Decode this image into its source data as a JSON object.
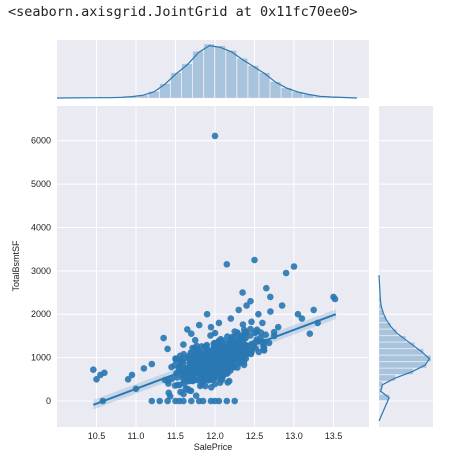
{
  "output_repr": "<seaborn.axisgrid.JointGrid at 0x11fc70ee0>",
  "colors": {
    "panel_bg": "#eaeaf2",
    "grid": "#ffffff",
    "points": "#2a78b3",
    "hist": "#a8c3dc"
  },
  "chart_data": {
    "type": "scatter",
    "xlabel": "SalePrice",
    "ylabel": "TotalBsmtSF",
    "xlim": [
      10.0,
      13.95
    ],
    "ylim": [
      -600,
      6800
    ],
    "xticks": [
      "10.5",
      "11.0",
      "11.5",
      "12.0",
      "12.5",
      "13.0",
      "13.5"
    ],
    "yticks": [
      "0",
      "1000",
      "2000",
      "3000",
      "4000",
      "5000",
      "6000"
    ],
    "regression": {
      "intercept": -7200,
      "slope": 680,
      "x_range": [
        10.46,
        13.53
      ]
    },
    "points": [
      [
        10.46,
        720
      ],
      [
        10.5,
        500
      ],
      [
        10.55,
        600
      ],
      [
        10.6,
        650
      ],
      [
        10.58,
        0
      ],
      [
        10.9,
        500
      ],
      [
        11.0,
        280
      ],
      [
        11.1,
        750
      ],
      [
        10.95,
        600
      ],
      [
        11.2,
        850
      ],
      [
        11.35,
        1450
      ],
      [
        11.4,
        1200
      ],
      [
        11.45,
        780
      ],
      [
        11.5,
        980
      ],
      [
        11.6,
        1300
      ],
      [
        11.65,
        1650
      ],
      [
        11.7,
        1550
      ],
      [
        11.75,
        1400
      ],
      [
        11.8,
        1750
      ],
      [
        11.9,
        2000
      ],
      [
        11.95,
        1700
      ],
      [
        12.0,
        6110
      ],
      [
        12.05,
        1800
      ],
      [
        12.1,
        1300
      ],
      [
        12.15,
        3150
      ],
      [
        12.2,
        1900
      ],
      [
        12.25,
        1600
      ],
      [
        12.3,
        2100
      ],
      [
        12.35,
        2500
      ],
      [
        12.4,
        2200
      ],
      [
        12.45,
        2300
      ],
      [
        12.5,
        3250
      ],
      [
        12.55,
        2000
      ],
      [
        12.6,
        1800
      ],
      [
        12.65,
        2600
      ],
      [
        12.7,
        2400
      ],
      [
        12.75,
        1500
      ],
      [
        12.8,
        1700
      ],
      [
        12.85,
        2200
      ],
      [
        12.9,
        2950
      ],
      [
        13.0,
        3100
      ],
      [
        13.05,
        2000
      ],
      [
        13.1,
        1900
      ],
      [
        13.2,
        1550
      ],
      [
        13.25,
        2100
      ],
      [
        13.3,
        1800
      ],
      [
        13.5,
        2400
      ],
      [
        13.52,
        2350
      ],
      [
        11.2,
        0
      ],
      [
        11.3,
        0
      ],
      [
        11.4,
        0
      ],
      [
        11.5,
        0
      ],
      [
        11.55,
        0
      ],
      [
        11.6,
        0
      ],
      [
        11.7,
        0
      ],
      [
        11.8,
        0
      ],
      [
        11.85,
        0
      ],
      [
        11.95,
        0
      ],
      [
        12.05,
        0
      ],
      [
        12.15,
        0
      ],
      [
        12.25,
        0
      ],
      [
        12.0,
        0
      ]
    ],
    "marginal_x": {
      "bins": [
        10.46,
        10.6,
        10.74,
        10.88,
        11.02,
        11.16,
        11.3,
        11.44,
        11.58,
        11.72,
        11.86,
        12.0,
        12.14,
        12.28,
        12.42,
        12.56,
        12.7,
        12.84,
        12.98,
        13.12,
        13.26,
        13.4,
        13.54
      ],
      "counts": [
        1,
        1,
        2,
        4,
        8,
        18,
        40,
        70,
        95,
        130,
        150,
        145,
        132,
        110,
        90,
        70,
        45,
        28,
        17,
        10,
        5,
        3
      ]
    },
    "marginal_y": {
      "bins": [
        0,
        150,
        300,
        450,
        600,
        750,
        900,
        1050,
        1200,
        1350,
        1500,
        1650,
        1800,
        1950,
        2100,
        2250,
        2400
      ],
      "counts": [
        35,
        6,
        12,
        55,
        115,
        160,
        175,
        150,
        120,
        90,
        60,
        40,
        25,
        15,
        8,
        5
      ]
    }
  }
}
